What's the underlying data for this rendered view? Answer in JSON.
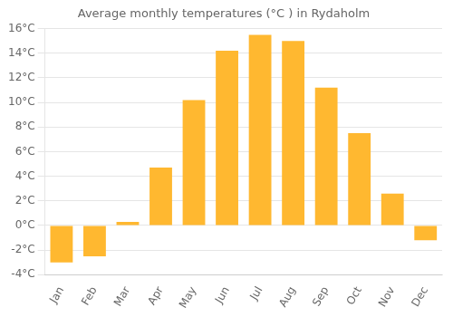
{
  "chart_data": {
    "type": "bar",
    "title": "Average monthly temperatures (°C ) in Rydaholm",
    "categories": [
      "Jan",
      "Feb",
      "Mar",
      "Apr",
      "May",
      "Jun",
      "Jul",
      "Aug",
      "Sep",
      "Oct",
      "Nov",
      "Dec"
    ],
    "values": [
      -3.0,
      -2.5,
      0.3,
      4.7,
      10.2,
      14.2,
      15.5,
      15.0,
      11.2,
      7.5,
      2.6,
      -1.2
    ],
    "color": "#FFB830",
    "ylim": [
      -4,
      16
    ],
    "yticks": [
      {
        "value": -4,
        "label": "-4°C"
      },
      {
        "value": -2,
        "label": "-2°C"
      },
      {
        "value": 0,
        "label": "0°C"
      },
      {
        "value": 2,
        "label": "2°C"
      },
      {
        "value": 4,
        "label": "4°C"
      },
      {
        "value": 6,
        "label": "6°C"
      },
      {
        "value": 8,
        "label": "8°C"
      },
      {
        "value": 10,
        "label": "10°C"
      },
      {
        "value": 12,
        "label": "12°C"
      },
      {
        "value": 14,
        "label": "14°C"
      },
      {
        "value": 16,
        "label": "16°C"
      }
    ],
    "grid": true
  }
}
